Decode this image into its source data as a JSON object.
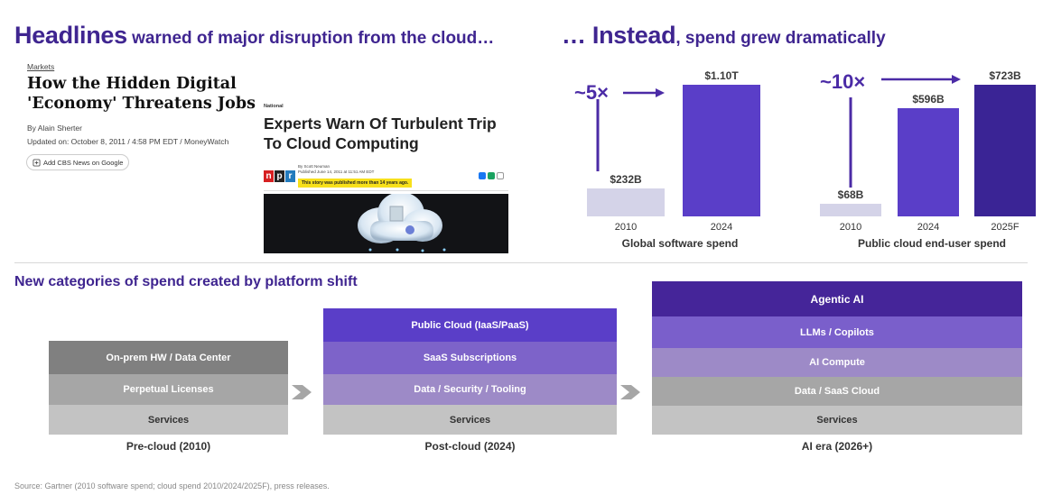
{
  "headline_left": {
    "bold": "Headlines",
    "rest": " warned of major disruption from the cloud…"
  },
  "headline_right": {
    "bold": "… Instead",
    "rest": ", spend grew dramatically"
  },
  "article_cbs": {
    "section": "Markets",
    "title": "How the Hidden Digital 'Economy' Threatens Jobs",
    "byline": "By Alain Sherter",
    "updated": "Updated on: October 8, 2011 / 4:58 PM EDT / MoneyWatch",
    "chip": "Add CBS News on Google"
  },
  "article_npr": {
    "tag": "National",
    "title": "Experts Warn Of Turbulent Trip To Cloud Computing",
    "logo": [
      "n",
      "p",
      "r"
    ],
    "author": "By Scott Neuman",
    "published": "Published June 14, 2011 at 11:51 AM EDT",
    "notice": "This story was published more than 14 years ago."
  },
  "colors": {
    "headline": "#3f2590",
    "bar_light": "#d4d3e8",
    "bar_purple": "#5a3ec8",
    "bar_dark": "#3a2495"
  },
  "chart_data": [
    {
      "type": "bar",
      "title": "Global software spend",
      "categories": [
        "2010",
        "2024"
      ],
      "values": [
        232,
        1100
      ],
      "value_labels": [
        "$232B",
        "$1.10T"
      ],
      "unit": "$B",
      "multiplier_label": "~5×",
      "ylim": [
        0,
        1100
      ],
      "grid": false
    },
    {
      "type": "bar",
      "title": "Public cloud end-user spend",
      "categories": [
        "2010",
        "2024",
        "2025F"
      ],
      "values": [
        68,
        596,
        723
      ],
      "value_labels": [
        "$68B",
        "$596B",
        "$723B"
      ],
      "unit": "$B",
      "multiplier_label": "~10×",
      "ylim": [
        0,
        723
      ],
      "grid": false
    }
  ],
  "platform_shift": {
    "title": "New categories of spend created by platform shift",
    "stacks": [
      {
        "caption": "Pre-cloud (2010)",
        "layers": [
          {
            "label": "On-prem HW / Data Center",
            "color": "#808080"
          },
          {
            "label": "Perpetual Licenses",
            "color": "#a6a6a6"
          },
          {
            "label": "Services",
            "color": "#c3c3c3"
          }
        ]
      },
      {
        "caption": "Post-cloud (2024)",
        "layers": [
          {
            "label": "Public Cloud (IaaS/PaaS)",
            "color": "#5a3ec8"
          },
          {
            "label": "SaaS Subscriptions",
            "color": "#7d63c9"
          },
          {
            "label": "Data / Security / Tooling",
            "color": "#9d8ac7"
          },
          {
            "label": "Services",
            "color": "#c3c3c3"
          }
        ]
      },
      {
        "caption": "AI era (2026+)",
        "layers": [
          {
            "label": "Agentic AI",
            "color": "#452599"
          },
          {
            "label": "LLMs / Copilots",
            "color": "#7a5fcb"
          },
          {
            "label": "AI Compute",
            "color": "#9d8ac7"
          },
          {
            "label": "Data / SaaS Cloud",
            "color": "#a6a6a6"
          },
          {
            "label": "Services",
            "color": "#c3c3c3"
          }
        ]
      }
    ]
  },
  "source": "Source: Gartner (2010 software spend; cloud spend 2010/2024/2025F), press releases."
}
